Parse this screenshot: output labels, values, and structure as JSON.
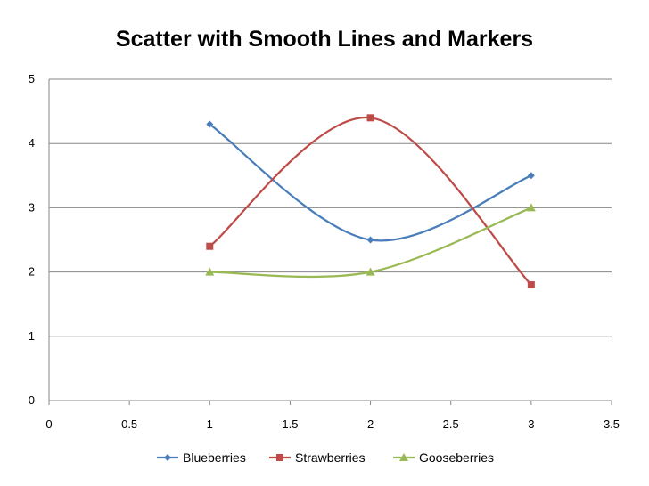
{
  "chart_data": {
    "type": "scatter",
    "title": "Scatter with Smooth Lines and Markers",
    "xlim": [
      0,
      3.5
    ],
    "ylim": [
      0,
      5
    ],
    "x_ticks": [
      "0",
      "0.5",
      "1",
      "1.5",
      "2",
      "2.5",
      "3",
      "3.5"
    ],
    "y_ticks": [
      "0",
      "1",
      "2",
      "3",
      "4",
      "5"
    ],
    "grid": "horizontal",
    "legend_position": "bottom",
    "series": [
      {
        "name": "Blueberries",
        "color": "#4A7EBB",
        "marker": "diamond",
        "x": [
          1,
          2,
          3
        ],
        "y": [
          4.3,
          2.5,
          3.5
        ]
      },
      {
        "name": "Strawberries",
        "color": "#BE4B48",
        "marker": "square",
        "x": [
          1,
          2,
          3
        ],
        "y": [
          2.4,
          4.4,
          1.8
        ]
      },
      {
        "name": "Gooseberries",
        "color": "#98B954",
        "marker": "triangle",
        "x": [
          1,
          2,
          3
        ],
        "y": [
          2.0,
          2.0,
          3.0
        ]
      }
    ]
  }
}
